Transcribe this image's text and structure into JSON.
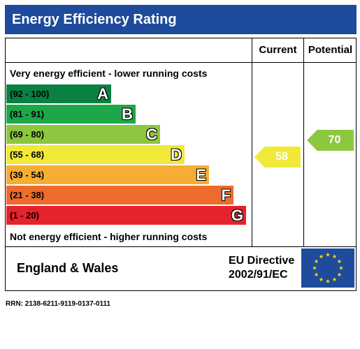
{
  "header": {
    "title": "Energy Efficiency Rating"
  },
  "columns": {
    "current": "Current",
    "potential": "Potential"
  },
  "captions": {
    "top": "Very energy efficient - lower running costs",
    "bottom": "Not energy efficient - higher running costs"
  },
  "bands": [
    {
      "range": "(92 - 100)",
      "letter": "A",
      "color": "#0a8043"
    },
    {
      "range": "(81 - 91)",
      "letter": "B",
      "color": "#1ea748"
    },
    {
      "range": "(69 - 80)",
      "letter": "C",
      "color": "#8dc73f"
    },
    {
      "range": "(55 - 68)",
      "letter": "D",
      "color": "#f0e93a"
    },
    {
      "range": "(39 - 54)",
      "letter": "E",
      "color": "#f6ad34"
    },
    {
      "range": "(21 - 38)",
      "letter": "F",
      "color": "#ef6b2c"
    },
    {
      "range": "(1 - 20)",
      "letter": "G",
      "color": "#e5232c"
    }
  ],
  "ratings": {
    "current": {
      "value": "58",
      "band": "D",
      "color": "#f0e93a"
    },
    "potential": {
      "value": "70",
      "band": "C",
      "color": "#8dc73f"
    }
  },
  "footer": {
    "region": "England & Wales",
    "directive_line1": "EU Directive",
    "directive_line2": "2002/91/EC"
  },
  "rrn": "RRN: 2138-6211-9119-0137-0111"
}
